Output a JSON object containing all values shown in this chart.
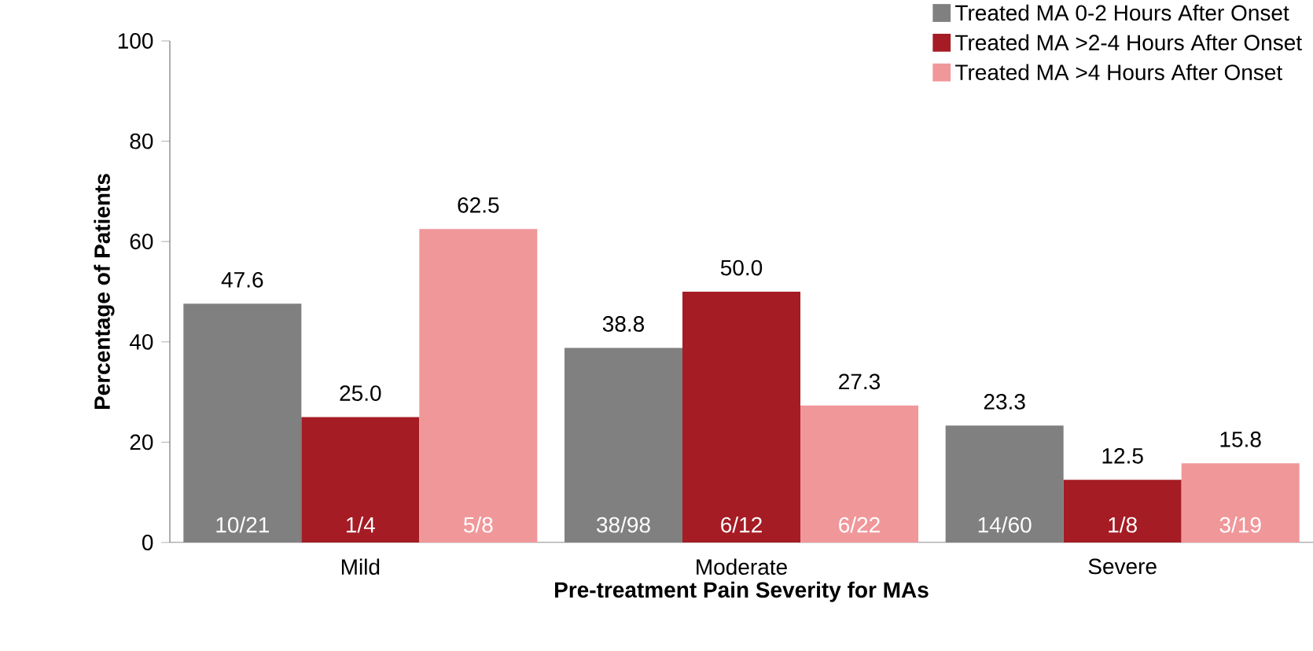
{
  "chart_data": {
    "type": "bar",
    "xlabel": "Pre-treatment Pain Severity for MAs",
    "ylabel": "Percentage of Patients",
    "categories": [
      "Mild",
      "Moderate",
      "Severe"
    ],
    "series": [
      {
        "name": "Treated MA 0-2 Hours After Onset",
        "color": "#808080",
        "values": [
          47.6,
          38.8,
          23.3
        ],
        "value_labels": [
          "47.6",
          "38.8",
          "23.3"
        ]
      },
      {
        "name": "Treated MA >2-4 Hours After Onset",
        "color": "#a51c24",
        "values": [
          25.0,
          50.0,
          12.5
        ],
        "value_labels": [
          "25.0",
          "50.0",
          "12.5"
        ]
      },
      {
        "name": "Treated MA >4 Hours After Onset",
        "color": "#f0979a",
        "values": [
          62.5,
          27.3,
          15.8
        ],
        "value_labels": [
          "62.5",
          "27.3",
          "15.8"
        ]
      }
    ],
    "annotations": [
      "10/21",
      "1/4",
      "5/8",
      "38/98",
      "6/12",
      "6/22",
      "14/60",
      "1/8",
      "3/19"
    ],
    "ylim": [
      0,
      100
    ],
    "yticks": [
      0,
      20,
      40,
      60,
      80,
      100
    ],
    "grid": false,
    "legend": "top right"
  }
}
